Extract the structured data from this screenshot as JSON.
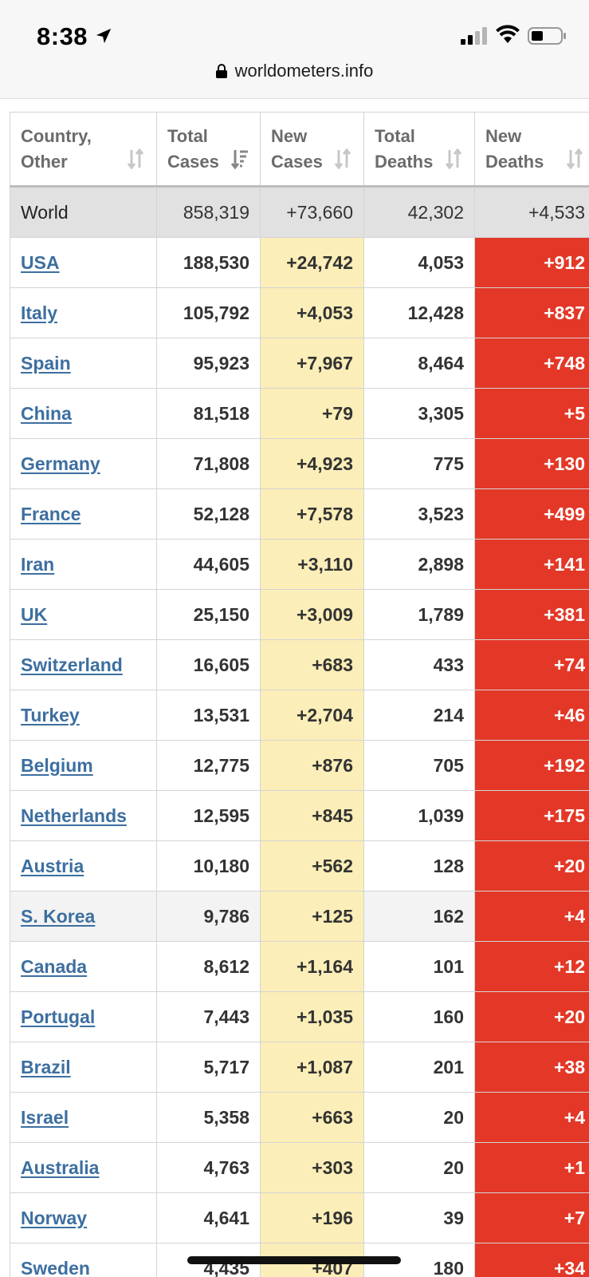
{
  "status_bar": {
    "time": "8:38"
  },
  "browser": {
    "url": "worldometers.info"
  },
  "table": {
    "headers": [
      {
        "line1": "Country,",
        "line2": "Other"
      },
      {
        "line1": "Total",
        "line2": "Cases"
      },
      {
        "line1": "New",
        "line2": "Cases"
      },
      {
        "line1": "Total",
        "line2": "Deaths"
      },
      {
        "line1": "New",
        "line2": "Deaths"
      }
    ],
    "world": {
      "country": "World",
      "total_cases": "858,319",
      "new_cases": "+73,660",
      "total_deaths": "42,302",
      "new_deaths": "+4,533"
    },
    "rows": [
      {
        "country": "USA",
        "total_cases": "188,530",
        "new_cases": "+24,742",
        "total_deaths": "4,053",
        "new_deaths": "+912"
      },
      {
        "country": "Italy",
        "total_cases": "105,792",
        "new_cases": "+4,053",
        "total_deaths": "12,428",
        "new_deaths": "+837"
      },
      {
        "country": "Spain",
        "total_cases": "95,923",
        "new_cases": "+7,967",
        "total_deaths": "8,464",
        "new_deaths": "+748"
      },
      {
        "country": "China",
        "total_cases": "81,518",
        "new_cases": "+79",
        "total_deaths": "3,305",
        "new_deaths": "+5"
      },
      {
        "country": "Germany",
        "total_cases": "71,808",
        "new_cases": "+4,923",
        "total_deaths": "775",
        "new_deaths": "+130"
      },
      {
        "country": "France",
        "total_cases": "52,128",
        "new_cases": "+7,578",
        "total_deaths": "3,523",
        "new_deaths": "+499"
      },
      {
        "country": "Iran",
        "total_cases": "44,605",
        "new_cases": "+3,110",
        "total_deaths": "2,898",
        "new_deaths": "+141"
      },
      {
        "country": "UK",
        "total_cases": "25,150",
        "new_cases": "+3,009",
        "total_deaths": "1,789",
        "new_deaths": "+381"
      },
      {
        "country": "Switzerland",
        "total_cases": "16,605",
        "new_cases": "+683",
        "total_deaths": "433",
        "new_deaths": "+74"
      },
      {
        "country": "Turkey",
        "total_cases": "13,531",
        "new_cases": "+2,704",
        "total_deaths": "214",
        "new_deaths": "+46"
      },
      {
        "country": "Belgium",
        "total_cases": "12,775",
        "new_cases": "+876",
        "total_deaths": "705",
        "new_deaths": "+192"
      },
      {
        "country": "Netherlands",
        "total_cases": "12,595",
        "new_cases": "+845",
        "total_deaths": "1,039",
        "new_deaths": "+175"
      },
      {
        "country": "Austria",
        "total_cases": "10,180",
        "new_cases": "+562",
        "total_deaths": "128",
        "new_deaths": "+20"
      },
      {
        "country": "S. Korea",
        "total_cases": "9,786",
        "new_cases": "+125",
        "total_deaths": "162",
        "new_deaths": "+4"
      },
      {
        "country": "Canada",
        "total_cases": "8,612",
        "new_cases": "+1,164",
        "total_deaths": "101",
        "new_deaths": "+12"
      },
      {
        "country": "Portugal",
        "total_cases": "7,443",
        "new_cases": "+1,035",
        "total_deaths": "160",
        "new_deaths": "+20"
      },
      {
        "country": "Brazil",
        "total_cases": "5,717",
        "new_cases": "+1,087",
        "total_deaths": "201",
        "new_deaths": "+38"
      },
      {
        "country": "Israel",
        "total_cases": "5,358",
        "new_cases": "+663",
        "total_deaths": "20",
        "new_deaths": "+4"
      },
      {
        "country": "Australia",
        "total_cases": "4,763",
        "new_cases": "+303",
        "total_deaths": "20",
        "new_deaths": "+1"
      },
      {
        "country": "Norway",
        "total_cases": "4,641",
        "new_cases": "+196",
        "total_deaths": "39",
        "new_deaths": "+7"
      },
      {
        "country": "Sweden",
        "total_cases": "4,435",
        "new_cases": "+407",
        "total_deaths": "180",
        "new_deaths": "+34"
      }
    ]
  },
  "colors": {
    "link": "#3d6fa0",
    "new_cases_bg": "#fbeeb8",
    "new_deaths_bg": "#e33827",
    "world_bg": "#e1e1e1"
  }
}
